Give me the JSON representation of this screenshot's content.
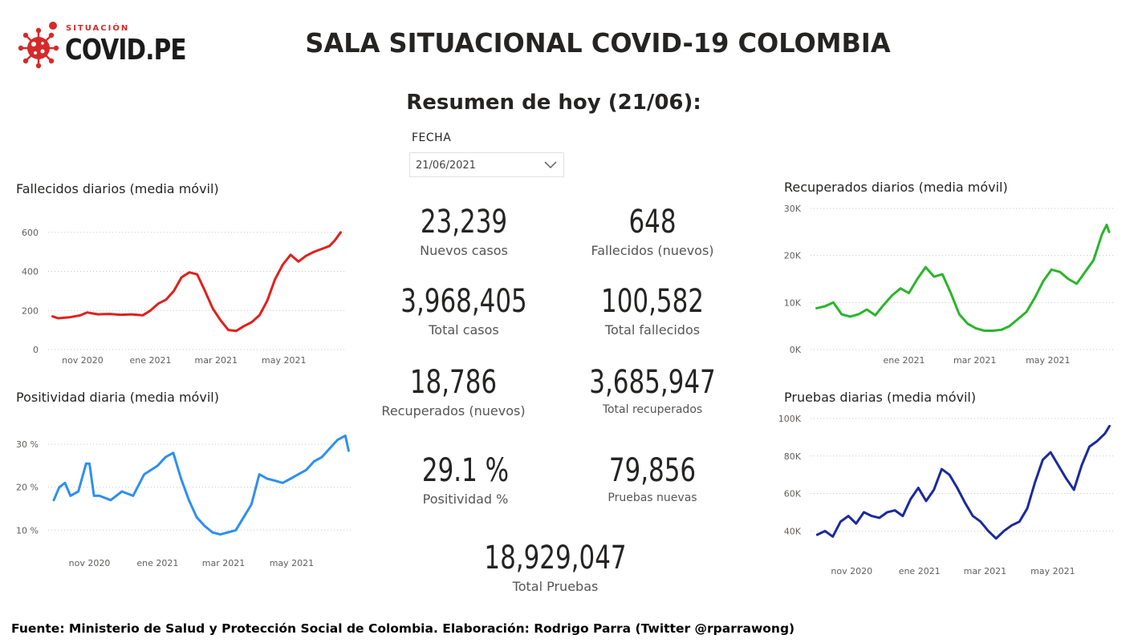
{
  "logo": {
    "small": "SITUACIÓN",
    "big": "COVID.PE"
  },
  "header": {
    "title": "SALA SITUACIONAL COVID-19 COLOMBIA",
    "subtitle": "Resumen de hoy (21/06):"
  },
  "filter": {
    "label": "FECHA",
    "value": "21/06/2021"
  },
  "kpis": {
    "nuevos_casos": {
      "value": "23,239",
      "label": "Nuevos casos"
    },
    "fallecidos_nuevos": {
      "value": "648",
      "label": "Fallecidos (nuevos)"
    },
    "total_casos": {
      "value": "3,968,405",
      "label": "Total casos"
    },
    "total_fallecidos": {
      "value": "100,582",
      "label": "Total fallecidos"
    },
    "recuperados_nuevos": {
      "value": "18,786",
      "label": "Recuperados (nuevos)"
    },
    "total_recuperados": {
      "value": "3,685,947",
      "label": "Total recuperados"
    },
    "positividad": {
      "value": "29.1 %",
      "label": "Positividad %"
    },
    "pruebas_nuevas": {
      "value": "79,856",
      "label": "Pruebas nuevas"
    },
    "total_pruebas": {
      "value": "18,929,047",
      "label": "Total Pruebas"
    }
  },
  "colors": {
    "fallecidos": "#e0201b",
    "positividad": "#2e8ff0",
    "recuperados": "#2ab52a",
    "pruebas": "#1b2a9c"
  },
  "footer": {
    "text": "Fuente: Ministerio de Salud y Protección Social de Colombia. Elaboración: Rodrigo Parra (Twitter @rparrawong)"
  },
  "chart_data": [
    {
      "id": "fallecidos",
      "type": "line",
      "title": "Fallecidos diarios (media móvil)",
      "x_ticks": [
        "nov 2020",
        "ene 2021",
        "mar 2021",
        "may 2021"
      ],
      "x_tick_dates": [
        "2020-11-01",
        "2021-01-01",
        "2021-03-01",
        "2021-05-01"
      ],
      "y_ticks": [
        "0",
        "200",
        "400",
        "600"
      ],
      "y_tick_values": [
        0,
        200,
        400,
        600
      ],
      "ylim": [
        0,
        640
      ],
      "xlim": [
        "2020-10-01",
        "2021-06-25"
      ],
      "series": [
        {
          "x": [
            "2020-10-05",
            "2020-10-10",
            "2020-10-20",
            "2020-10-30",
            "2020-11-05",
            "2020-11-15",
            "2020-11-25",
            "2020-12-05",
            "2020-12-15",
            "2020-12-25",
            "2021-01-01",
            "2021-01-08",
            "2021-01-15",
            "2021-01-22",
            "2021-01-29",
            "2021-02-05",
            "2021-02-12",
            "2021-02-19",
            "2021-02-26",
            "2021-03-05",
            "2021-03-12",
            "2021-03-19",
            "2021-03-26",
            "2021-04-02",
            "2021-04-09",
            "2021-04-16",
            "2021-04-23",
            "2021-04-30",
            "2021-05-07",
            "2021-05-14",
            "2021-05-21",
            "2021-05-28",
            "2021-06-04",
            "2021-06-11",
            "2021-06-16",
            "2021-06-21"
          ],
          "y": [
            170,
            160,
            165,
            175,
            190,
            180,
            182,
            178,
            180,
            175,
            200,
            235,
            255,
            300,
            370,
            395,
            385,
            300,
            210,
            150,
            100,
            95,
            120,
            140,
            175,
            250,
            360,
            435,
            485,
            450,
            480,
            500,
            515,
            530,
            560,
            600
          ]
        }
      ]
    },
    {
      "id": "positividad",
      "type": "line",
      "title": "Positividad diaria (media móvil)",
      "x_ticks": [
        "nov 2020",
        "ene 2021",
        "mar 2021",
        "may 2021"
      ],
      "x_tick_dates": [
        "2020-11-01",
        "2021-01-01",
        "2021-03-01",
        "2021-05-01"
      ],
      "y_ticks": [
        "10 %",
        "20 %",
        "30 %"
      ],
      "y_tick_values": [
        10,
        20,
        30
      ],
      "ylim": [
        8,
        33
      ],
      "xlim": [
        "2020-09-25",
        "2021-06-25"
      ],
      "series": [
        {
          "x": [
            "2020-09-30",
            "2020-10-05",
            "2020-10-10",
            "2020-10-15",
            "2020-10-22",
            "2020-10-29",
            "2020-11-01",
            "2020-11-05",
            "2020-11-10",
            "2020-11-20",
            "2020-11-30",
            "2020-12-10",
            "2020-12-20",
            "2021-01-01",
            "2021-01-08",
            "2021-01-15",
            "2021-01-22",
            "2021-01-29",
            "2021-02-05",
            "2021-02-12",
            "2021-02-19",
            "2021-02-26",
            "2021-03-05",
            "2021-03-12",
            "2021-03-19",
            "2021-03-26",
            "2021-04-02",
            "2021-04-09",
            "2021-04-16",
            "2021-04-23",
            "2021-04-30",
            "2021-05-07",
            "2021-05-14",
            "2021-05-21",
            "2021-05-28",
            "2021-06-04",
            "2021-06-11",
            "2021-06-18",
            "2021-06-21"
          ],
          "y": [
            17,
            20,
            21,
            18,
            19,
            25.5,
            25.5,
            18,
            18,
            17,
            19,
            18,
            23,
            25,
            27,
            28,
            22,
            17,
            13,
            11,
            9.5,
            9,
            9.5,
            10,
            13,
            16,
            23,
            22,
            21.5,
            21,
            22,
            23,
            24,
            26,
            27,
            29,
            31,
            32,
            28.5
          ]
        }
      ]
    },
    {
      "id": "recuperados",
      "type": "line",
      "title": "Recuperados diarios (media móvil)",
      "x_ticks": [
        "ene 2021",
        "mar 2021",
        "may 2021"
      ],
      "x_tick_dates": [
        "2021-01-01",
        "2021-03-01",
        "2021-05-01"
      ],
      "y_ticks": [
        "0K",
        "10K",
        "20K",
        "30K"
      ],
      "y_tick_values": [
        0,
        10000,
        20000,
        30000
      ],
      "ylim": [
        0,
        30000
      ],
      "xlim": [
        "2020-10-15",
        "2021-06-25"
      ],
      "series": [
        {
          "x": [
            "2020-10-20",
            "2020-10-27",
            "2020-11-03",
            "2020-11-10",
            "2020-11-17",
            "2020-11-24",
            "2020-12-01",
            "2020-12-08",
            "2020-12-15",
            "2020-12-22",
            "2020-12-29",
            "2021-01-05",
            "2021-01-12",
            "2021-01-19",
            "2021-01-26",
            "2021-02-02",
            "2021-02-09",
            "2021-02-16",
            "2021-02-23",
            "2021-03-02",
            "2021-03-09",
            "2021-03-16",
            "2021-03-23",
            "2021-03-30",
            "2021-04-06",
            "2021-04-13",
            "2021-04-20",
            "2021-04-27",
            "2021-05-04",
            "2021-05-11",
            "2021-05-18",
            "2021-05-25",
            "2021-06-01",
            "2021-06-08",
            "2021-06-15",
            "2021-06-19",
            "2021-06-21"
          ],
          "y": [
            8800,
            9200,
            10000,
            7500,
            7000,
            7500,
            8500,
            7300,
            9500,
            11500,
            13000,
            12000,
            15000,
            17500,
            15500,
            16000,
            12000,
            7500,
            5500,
            4500,
            4000,
            4000,
            4200,
            5000,
            6500,
            8000,
            11000,
            14500,
            17000,
            16500,
            15000,
            14000,
            16500,
            19000,
            24500,
            26500,
            25000
          ]
        }
      ]
    },
    {
      "id": "pruebas",
      "type": "line",
      "title": "Pruebas diarias (media móvil)",
      "x_ticks": [
        "nov 2020",
        "ene 2021",
        "mar 2021",
        "may 2021"
      ],
      "x_tick_dates": [
        "2020-11-01",
        "2021-01-01",
        "2021-03-01",
        "2021-05-01"
      ],
      "y_ticks": [
        "40K",
        "60K",
        "80K",
        "100K"
      ],
      "y_tick_values": [
        40000,
        60000,
        80000,
        100000
      ],
      "ylim": [
        35000,
        100000
      ],
      "xlim": [
        "2020-09-25",
        "2021-06-25"
      ],
      "series": [
        {
          "x": [
            "2020-10-01",
            "2020-10-08",
            "2020-10-15",
            "2020-10-22",
            "2020-10-29",
            "2020-11-05",
            "2020-11-12",
            "2020-11-19",
            "2020-11-26",
            "2020-12-03",
            "2020-12-10",
            "2020-12-17",
            "2020-12-24",
            "2020-12-31",
            "2021-01-07",
            "2021-01-14",
            "2021-01-21",
            "2021-01-28",
            "2021-02-04",
            "2021-02-11",
            "2021-02-18",
            "2021-02-25",
            "2021-03-04",
            "2021-03-11",
            "2021-03-18",
            "2021-03-25",
            "2021-04-01",
            "2021-04-08",
            "2021-04-15",
            "2021-04-22",
            "2021-04-29",
            "2021-05-06",
            "2021-05-13",
            "2021-05-20",
            "2021-05-27",
            "2021-06-03",
            "2021-06-10",
            "2021-06-17",
            "2021-06-21"
          ],
          "y": [
            38000,
            40000,
            37000,
            45000,
            48000,
            44000,
            50000,
            48000,
            47000,
            50000,
            51000,
            48000,
            57000,
            63000,
            56000,
            62000,
            73000,
            70000,
            63000,
            55000,
            48000,
            45000,
            40000,
            36000,
            40000,
            43000,
            45000,
            52000,
            66000,
            78000,
            82000,
            75000,
            68000,
            62000,
            75000,
            85000,
            88000,
            92000,
            96000
          ]
        }
      ]
    }
  ]
}
